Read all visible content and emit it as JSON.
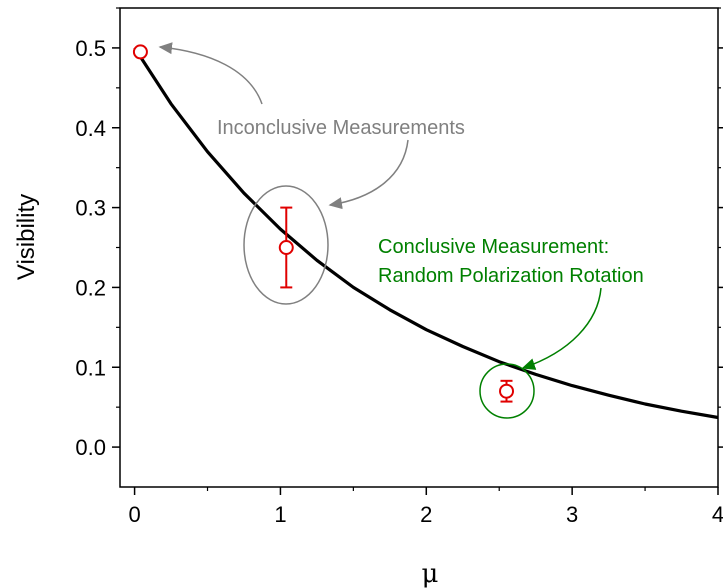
{
  "chart_data": {
    "type": "scatter",
    "xlabel": "μ",
    "ylabel": "Visibility",
    "xlim": [
      -0.1,
      4.0
    ],
    "ylim": [
      -0.05,
      0.55
    ],
    "x_ticks": [
      "0",
      "1",
      "2",
      "3",
      "4"
    ],
    "y_ticks": [
      "0.0",
      "0.1",
      "0.2",
      "0.3",
      "0.4",
      "0.5"
    ],
    "curve": {
      "color": "#000000",
      "points": [
        {
          "x": 0.0,
          "y": 0.5
        },
        {
          "x": 0.25,
          "y": 0.43
        },
        {
          "x": 0.5,
          "y": 0.37
        },
        {
          "x": 0.75,
          "y": 0.318
        },
        {
          "x": 1.0,
          "y": 0.273
        },
        {
          "x": 1.25,
          "y": 0.234
        },
        {
          "x": 1.5,
          "y": 0.2
        },
        {
          "x": 1.75,
          "y": 0.172
        },
        {
          "x": 2.0,
          "y": 0.147
        },
        {
          "x": 2.25,
          "y": 0.126
        },
        {
          "x": 2.5,
          "y": 0.107
        },
        {
          "x": 2.75,
          "y": 0.091
        },
        {
          "x": 3.0,
          "y": 0.077
        },
        {
          "x": 3.25,
          "y": 0.065
        },
        {
          "x": 3.5,
          "y": 0.054
        },
        {
          "x": 3.75,
          "y": 0.045
        },
        {
          "x": 4.0,
          "y": 0.037
        }
      ]
    },
    "points": [
      {
        "x": 0.04,
        "y": 0.495,
        "err": null
      },
      {
        "x": 1.04,
        "y": 0.25,
        "err": 0.05
      },
      {
        "x": 2.55,
        "y": 0.07,
        "err": 0.013
      }
    ],
    "point_color": "#e00000",
    "annotations": {
      "inconclusive": {
        "text": "Inconclusive Measurements",
        "color": "#808080"
      },
      "conclusive": {
        "line1": "Conclusive Measurement:",
        "line2": "Random Polarization Rotation",
        "color": "#008000"
      }
    }
  }
}
